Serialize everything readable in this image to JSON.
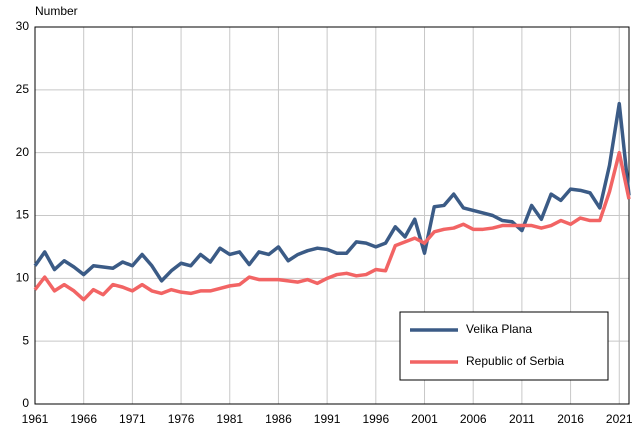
{
  "chart_data": {
    "type": "line",
    "y_label": "Number",
    "x": [
      1961,
      1962,
      1963,
      1964,
      1965,
      1966,
      1967,
      1968,
      1969,
      1970,
      1971,
      1972,
      1973,
      1974,
      1975,
      1976,
      1977,
      1978,
      1979,
      1980,
      1981,
      1982,
      1983,
      1984,
      1985,
      1986,
      1987,
      1988,
      1989,
      1990,
      1991,
      1992,
      1993,
      1994,
      1995,
      1996,
      1997,
      1998,
      1999,
      2000,
      2001,
      2002,
      2003,
      2004,
      2005,
      2006,
      2007,
      2008,
      2009,
      2010,
      2011,
      2012,
      2013,
      2014,
      2015,
      2016,
      2017,
      2018,
      2019,
      2020,
      2021,
      2022
    ],
    "series": [
      {
        "name": "Velika Plana",
        "color": "#3b5b86",
        "values": [
          11.0,
          12.1,
          10.7,
          11.4,
          10.9,
          10.3,
          11.0,
          10.9,
          10.8,
          11.3,
          11.0,
          11.9,
          11.0,
          9.8,
          10.6,
          11.2,
          11.0,
          11.9,
          11.3,
          12.4,
          11.9,
          12.1,
          11.1,
          12.1,
          11.9,
          12.5,
          11.4,
          11.9,
          12.2,
          12.4,
          12.3,
          12.0,
          12.0,
          12.9,
          12.8,
          12.5,
          12.8,
          14.1,
          13.3,
          14.7,
          12.0,
          15.7,
          15.8,
          16.7,
          15.6,
          15.4,
          15.2,
          15.0,
          14.6,
          14.5,
          13.8,
          15.8,
          14.7,
          16.7,
          16.2,
          17.1,
          17.0,
          16.8,
          15.6,
          19.0,
          23.9,
          16.6
        ]
      },
      {
        "name": "Republic of Serbia",
        "color": "#f26464",
        "values": [
          9.1,
          10.1,
          9.0,
          9.5,
          9.0,
          8.3,
          9.1,
          8.7,
          9.5,
          9.3,
          9.0,
          9.5,
          9.0,
          8.8,
          9.1,
          8.9,
          8.8,
          9.0,
          9.0,
          9.2,
          9.4,
          9.5,
          10.1,
          9.9,
          9.9,
          9.9,
          9.8,
          9.7,
          9.9,
          9.6,
          10.0,
          10.3,
          10.4,
          10.2,
          10.3,
          10.7,
          10.6,
          12.6,
          12.9,
          13.2,
          12.8,
          13.7,
          13.9,
          14.0,
          14.3,
          13.9,
          13.9,
          14.0,
          14.2,
          14.2,
          14.2,
          14.2,
          14.0,
          14.2,
          14.6,
          14.3,
          14.8,
          14.6,
          14.6,
          16.9,
          20.0,
          16.3
        ]
      }
    ],
    "xlim": [
      1961,
      2022
    ],
    "xticks": [
      1961,
      1966,
      1971,
      1976,
      1981,
      1986,
      1991,
      1996,
      2001,
      2006,
      2011,
      2016,
      2021
    ],
    "ylim": [
      0,
      30
    ],
    "yticks": [
      0,
      5,
      10,
      15,
      20,
      25,
      30
    ],
    "grid": true,
    "legend": "lower right"
  }
}
